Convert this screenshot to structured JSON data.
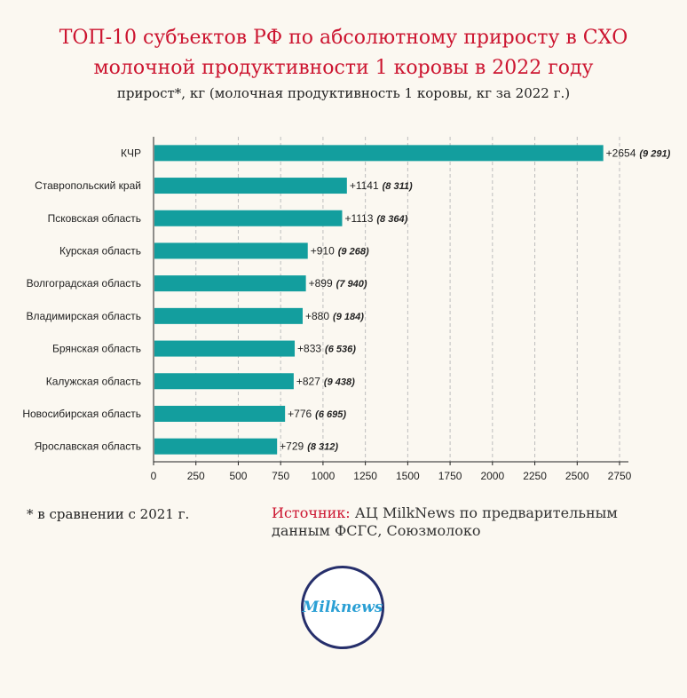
{
  "header": {
    "title_line1": "ТОП-10 субъектов РФ по абсолютному приросту в СХО",
    "title_line2": "молочной продуктивности 1 коровы в 2022 году",
    "subtitle": "прирост*, кг (молочная продуктивность 1 коровы, кг за 2022 г.)"
  },
  "footer": {
    "footnote": "* в сравнении с 2021 г.",
    "source_label": "Источник:",
    "source_text": "АЦ MilkNews по предварительным данным ФСГС, Союзмолоко"
  },
  "logo": {
    "text": "Milknews"
  },
  "colors": {
    "bar": "#139e9e",
    "title": "#cc1530",
    "grid": "#bdbdbd"
  },
  "chart_data": {
    "type": "bar",
    "orientation": "horizontal",
    "categories": [
      "КЧР",
      "Ставропольский край",
      "Псковская область",
      "Курская область",
      "Волгоградская область",
      "Владимирская область",
      "Брянская область",
      "Калужская область",
      "Новосибирская область",
      "Ярославская область"
    ],
    "values": [
      2654,
      1141,
      1113,
      910,
      899,
      880,
      833,
      827,
      776,
      729
    ],
    "value_labels": [
      "+2654",
      "+1141",
      "+1113",
      "+910",
      "+899",
      "+880",
      "+833",
      "+827",
      "+776",
      "+729"
    ],
    "productivity_labels": [
      "(9 291)",
      "(8 311)",
      "(8 364)",
      "(9 268)",
      "(7 940)",
      "(9 184)",
      "(6 536)",
      "(9 438)",
      "(6 695)",
      "(8 312)"
    ],
    "xlim": [
      0,
      2750
    ],
    "xticks": [
      0,
      250,
      500,
      750,
      1000,
      1250,
      1500,
      1750,
      2000,
      2250,
      2500,
      2750
    ],
    "grid": "vertical-dashed"
  }
}
